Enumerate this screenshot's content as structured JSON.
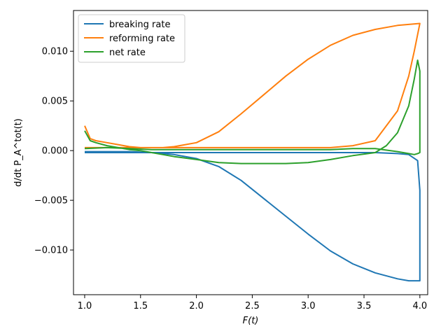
{
  "chart_data": {
    "type": "line",
    "xlabel": "F(t)",
    "ylabel": "d/dt P_A^tot(t)",
    "xlim": [
      0.9,
      4.07
    ],
    "ylim": [
      -0.0145,
      0.0141
    ],
    "xticks": [
      1.0,
      1.5,
      2.0,
      2.5,
      3.0,
      3.5,
      4.0
    ],
    "xtick_labels": [
      "1.0",
      "1.5",
      "2.0",
      "2.5",
      "3.0",
      "3.5",
      "4.0"
    ],
    "yticks": [
      -0.01,
      -0.005,
      0.0,
      0.005,
      0.01
    ],
    "ytick_labels": [
      "−0.010",
      "−0.005",
      "0.000",
      "0.005",
      "0.010"
    ],
    "grid": false,
    "legend_position": "top-left",
    "series": [
      {
        "name": "breaking rate",
        "color": "#1f77b4",
        "x": [
          1.0,
          1.2,
          1.4,
          1.6,
          1.8,
          2.0,
          2.2,
          2.4,
          2.6,
          2.8,
          3.0,
          3.2,
          3.4,
          3.6,
          3.8,
          3.9,
          3.98,
          4.0,
          4.0,
          4.0,
          3.98,
          3.9,
          3.8,
          3.6,
          3.2,
          2.8,
          2.4,
          2.0,
          1.6,
          1.2,
          1.0
        ],
        "y": [
          -0.0001,
          -0.0001,
          -0.0001,
          -0.0002,
          -0.0004,
          -0.0008,
          -0.0016,
          -0.003,
          -0.0048,
          -0.0066,
          -0.0084,
          -0.0101,
          -0.0114,
          -0.0123,
          -0.0129,
          -0.0131,
          -0.0131,
          -0.0131,
          -0.01,
          -0.004,
          -0.001,
          -0.0004,
          -0.0003,
          -0.0002,
          -0.0002,
          -0.0002,
          -0.0002,
          -0.0002,
          -0.0002,
          -0.0002,
          -0.0002
        ]
      },
      {
        "name": "reforming rate",
        "color": "#ff7f0e",
        "x": [
          1.0,
          1.05,
          1.1,
          1.2,
          1.3,
          1.4,
          1.5,
          1.6,
          1.7,
          1.8,
          2.0,
          2.2,
          2.4,
          2.6,
          2.8,
          3.0,
          3.2,
          3.4,
          3.6,
          3.8,
          4.0,
          4.0,
          3.95,
          3.9,
          3.8,
          3.6,
          3.4,
          3.2,
          3.0,
          2.8,
          2.6,
          2.4,
          2.2,
          2.0,
          1.8,
          1.6,
          1.4,
          1.2,
          1.0
        ],
        "y": [
          0.0025,
          0.0012,
          0.001,
          0.0008,
          0.0006,
          0.0004,
          0.0003,
          0.0003,
          0.0003,
          0.0004,
          0.0008,
          0.0019,
          0.0037,
          0.0056,
          0.0075,
          0.0092,
          0.0106,
          0.0116,
          0.0122,
          0.0126,
          0.0128,
          0.0128,
          0.01,
          0.0075,
          0.004,
          0.001,
          0.0005,
          0.0003,
          0.0003,
          0.0003,
          0.0003,
          0.0003,
          0.0003,
          0.0003,
          0.0003,
          0.0003,
          0.0003,
          0.0003,
          0.0003
        ]
      },
      {
        "name": "net rate",
        "color": "#2ca02c",
        "x": [
          1.0,
          1.05,
          1.1,
          1.2,
          1.3,
          1.4,
          1.5,
          1.6,
          1.7,
          1.8,
          2.0,
          2.2,
          2.4,
          2.6,
          2.8,
          3.0,
          3.2,
          3.4,
          3.6,
          3.7,
          3.8,
          3.9,
          3.95,
          3.98,
          4.0,
          4.0,
          3.98,
          3.95,
          3.9,
          3.8,
          3.6,
          3.4,
          3.2,
          3.0,
          2.8,
          2.6,
          2.4,
          2.2,
          2.0,
          1.8,
          1.6,
          1.4,
          1.2,
          1.0
        ],
        "y": [
          0.002,
          0.001,
          0.0008,
          0.0005,
          0.0003,
          0.0001,
          0.0,
          -0.0002,
          -0.0004,
          -0.0006,
          -0.0009,
          -0.0012,
          -0.0013,
          -0.0013,
          -0.0013,
          -0.0012,
          -0.0009,
          -0.0005,
          -0.0002,
          0.0005,
          0.0018,
          0.0045,
          0.0072,
          0.0091,
          0.008,
          -0.0002,
          -0.0003,
          -0.0004,
          -0.0003,
          -0.0001,
          0.0002,
          0.0002,
          0.0001,
          0.0001,
          0.0001,
          0.0001,
          0.0001,
          0.0001,
          0.0001,
          0.0001,
          0.0001,
          0.0002,
          0.0003,
          0.0002
        ]
      }
    ]
  }
}
